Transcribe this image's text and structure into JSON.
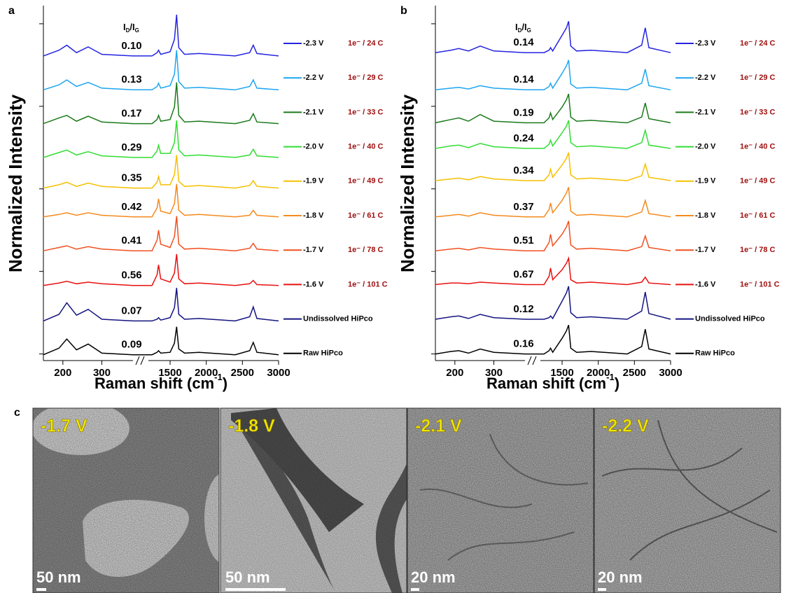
{
  "chart_data": [
    {
      "type": "line",
      "panel": "a",
      "ratio_header": [
        "I",
        "D",
        "/I",
        "G"
      ],
      "y_label": "Normalized Intensity",
      "x_label": [
        "Raman shift (cm",
        "-1",
        ")"
      ],
      "x": [
        150,
        190,
        210,
        235,
        265,
        300,
        380,
        1250,
        1320,
        1340,
        1370,
        1500,
        1560,
        1590,
        1620,
        1700,
        1900,
        2400,
        2600,
        2650,
        2700,
        3000
      ],
      "xlim": [
        150,
        3000
      ],
      "xbreak": [
        380,
        1200
      ],
      "xticks": [
        200,
        300,
        1500,
        2000,
        2500,
        3000
      ],
      "ylim": [
        -0.08,
        4.22
      ],
      "yticks": [
        0,
        1,
        2,
        3,
        4
      ],
      "series": [
        {
          "name": "-2.3 V",
          "charge": "1e⁻ / 24 C",
          "ratio": {
            "value": 0.1,
            "label": "0.10"
          },
          "color": "#2424e0",
          "values": [
            3.61,
            3.68,
            3.74,
            3.65,
            3.72,
            3.63,
            3.61,
            3.61,
            3.65,
            3.68,
            3.63,
            3.66,
            3.81,
            4.11,
            3.71,
            3.63,
            3.64,
            3.61,
            3.65,
            3.74,
            3.64,
            3.61
          ]
        },
        {
          "name": "-2.2 V",
          "charge": "1e⁻ / 29 C",
          "ratio": 0.13,
          "color": "#1ea6f0",
          "values": [
            3.2,
            3.26,
            3.32,
            3.24,
            3.29,
            3.22,
            3.2,
            3.2,
            3.24,
            3.28,
            3.22,
            3.25,
            3.39,
            3.68,
            3.3,
            3.22,
            3.23,
            3.2,
            3.24,
            3.32,
            3.22,
            3.2
          ]
        },
        {
          "name": "-2.1 V",
          "charge": "1e⁻ / 33 C",
          "ratio": 0.17,
          "color": "#1b7a1b",
          "values": [
            2.79,
            2.86,
            2.89,
            2.82,
            2.88,
            2.81,
            2.79,
            2.79,
            2.84,
            2.89,
            2.82,
            2.84,
            2.99,
            3.29,
            2.89,
            2.81,
            2.82,
            2.79,
            2.83,
            2.91,
            2.81,
            2.79
          ]
        },
        {
          "name": "-2.0 V",
          "charge": "1e⁻ / 40 C",
          "ratio": 0.29,
          "color": "#33dd33",
          "values": [
            2.38,
            2.44,
            2.47,
            2.41,
            2.45,
            2.4,
            2.38,
            2.38,
            2.46,
            2.53,
            2.43,
            2.43,
            2.56,
            2.83,
            2.47,
            2.4,
            2.41,
            2.38,
            2.41,
            2.48,
            2.4,
            2.38
          ]
        },
        {
          "name": "-1.9 V",
          "charge": "1e⁻ / 49 C",
          "ratio": 0.35,
          "color": "#f5c000",
          "values": [
            2.01,
            2.05,
            2.08,
            2.03,
            2.07,
            2.03,
            2.01,
            2.01,
            2.08,
            2.15,
            2.05,
            2.05,
            2.17,
            2.41,
            2.09,
            2.03,
            2.04,
            2.01,
            2.04,
            2.1,
            2.03,
            2.01
          ]
        },
        {
          "name": "-1.8 V",
          "charge": "1e⁻ / 61 C",
          "ratio": 0.42,
          "color": "#f58a1e",
          "values": [
            1.66,
            1.69,
            1.71,
            1.68,
            1.71,
            1.68,
            1.66,
            1.66,
            1.77,
            1.88,
            1.73,
            1.7,
            1.82,
            2.06,
            1.74,
            1.68,
            1.69,
            1.66,
            1.68,
            1.74,
            1.68,
            1.66
          ]
        },
        {
          "name": "-1.7 V",
          "charge": "1e⁻ / 78 C",
          "ratio": 0.41,
          "color": "#f05020",
          "values": [
            1.25,
            1.29,
            1.31,
            1.27,
            1.3,
            1.27,
            1.25,
            1.25,
            1.38,
            1.5,
            1.33,
            1.29,
            1.42,
            1.67,
            1.33,
            1.27,
            1.28,
            1.25,
            1.28,
            1.34,
            1.27,
            1.25
          ]
        },
        {
          "name": "-1.6 V",
          "charge": "1e⁻ / 101 C",
          "ratio": 0.56,
          "color": "#e81010",
          "values": [
            0.83,
            0.86,
            0.88,
            0.85,
            0.87,
            0.85,
            0.83,
            0.83,
            0.96,
            1.08,
            0.91,
            0.87,
            0.98,
            1.21,
            0.91,
            0.85,
            0.86,
            0.83,
            0.85,
            0.89,
            0.84,
            0.83
          ]
        },
        {
          "name": "Undissolved HiPco",
          "ratio": 0.07,
          "color": "#141480",
          "values": [
            0.4,
            0.48,
            0.62,
            0.47,
            0.54,
            0.42,
            0.4,
            0.4,
            0.42,
            0.44,
            0.41,
            0.44,
            0.56,
            0.8,
            0.48,
            0.42,
            0.43,
            0.4,
            0.45,
            0.57,
            0.43,
            0.4
          ]
        },
        {
          "name": "Raw HiPco",
          "ratio": 0.09,
          "color": "#000000",
          "values": [
            -0.01,
            0.07,
            0.18,
            0.05,
            0.12,
            0.01,
            -0.01,
            -0.01,
            0.02,
            0.04,
            0.01,
            0.02,
            0.13,
            0.33,
            0.06,
            0.01,
            0.02,
            -0.01,
            0.04,
            0.14,
            0.02,
            -0.01
          ]
        }
      ]
    },
    {
      "type": "line",
      "panel": "b",
      "ratio_header": [
        "I",
        "D",
        "/I",
        "G"
      ],
      "y_label": "Normalized Intensity",
      "x_label": [
        "Raman shift (cm",
        "-1",
        ")"
      ],
      "x": [
        150,
        190,
        210,
        235,
        265,
        300,
        380,
        1250,
        1320,
        1340,
        1370,
        1500,
        1560,
        1590,
        1620,
        1700,
        1900,
        2400,
        2600,
        2650,
        2700,
        3000
      ],
      "xlim": [
        150,
        3000
      ],
      "xbreak": [
        380,
        1200
      ],
      "xticks": [
        200,
        300,
        1500,
        2000,
        2500,
        3000
      ],
      "ylim": [
        -0.08,
        4.22
      ],
      "yticks": [
        0,
        1,
        2,
        3,
        4
      ],
      "series": [
        {
          "name": "-2.3 V",
          "charge": "1e⁻ / 24 C",
          "ratio": 0.14,
          "color": "#2424e0",
          "values": [
            3.65,
            3.68,
            3.7,
            3.67,
            3.73,
            3.67,
            3.65,
            3.65,
            3.68,
            3.71,
            3.67,
            3.86,
            3.95,
            4.03,
            3.73,
            3.67,
            3.68,
            3.65,
            3.74,
            3.95,
            3.71,
            3.65
          ]
        },
        {
          "name": "-2.2 V",
          "charge": "1e⁻ / 29 C",
          "ratio": 0.14,
          "color": "#1ea6f0",
          "values": [
            3.2,
            3.22,
            3.23,
            3.21,
            3.25,
            3.22,
            3.2,
            3.2,
            3.24,
            3.28,
            3.22,
            3.4,
            3.49,
            3.56,
            3.27,
            3.22,
            3.23,
            3.2,
            3.28,
            3.45,
            3.25,
            3.2
          ]
        },
        {
          "name": "-2.1 V",
          "charge": "1e⁻ / 33 C",
          "ratio": 0.19,
          "color": "#1b7a1b",
          "values": [
            2.8,
            2.84,
            2.86,
            2.82,
            2.9,
            2.82,
            2.8,
            2.8,
            2.86,
            2.92,
            2.84,
            2.99,
            3.08,
            3.15,
            2.87,
            2.82,
            2.83,
            2.8,
            2.87,
            3.04,
            2.85,
            2.8
          ]
        },
        {
          "name": "-2.0 V",
          "charge": "1e⁻ / 40 C",
          "ratio": 0.24,
          "color": "#33dd33",
          "values": [
            2.49,
            2.52,
            2.53,
            2.5,
            2.55,
            2.51,
            2.49,
            2.49,
            2.54,
            2.59,
            2.52,
            2.68,
            2.76,
            2.83,
            2.56,
            2.51,
            2.52,
            2.49,
            2.56,
            2.71,
            2.53,
            2.49
          ]
        },
        {
          "name": "-1.9 V",
          "charge": "1e⁻ / 49 C",
          "ratio": 0.34,
          "color": "#f5c000",
          "values": [
            2.1,
            2.12,
            2.13,
            2.11,
            2.15,
            2.12,
            2.1,
            2.1,
            2.17,
            2.24,
            2.14,
            2.29,
            2.37,
            2.44,
            2.17,
            2.12,
            2.13,
            2.1,
            2.16,
            2.3,
            2.14,
            2.1
          ]
        },
        {
          "name": "-1.8 V",
          "charge": "1e⁻ / 61 C",
          "ratio": 0.37,
          "color": "#f58a1e",
          "values": [
            1.66,
            1.68,
            1.69,
            1.67,
            1.71,
            1.68,
            1.66,
            1.66,
            1.75,
            1.83,
            1.71,
            1.86,
            1.95,
            2.02,
            1.73,
            1.68,
            1.69,
            1.66,
            1.72,
            1.86,
            1.7,
            1.66
          ]
        },
        {
          "name": "-1.7 V",
          "charge": "1e⁻ / 78 C",
          "ratio": 0.51,
          "color": "#f05020",
          "values": [
            1.25,
            1.27,
            1.28,
            1.26,
            1.29,
            1.27,
            1.25,
            1.25,
            1.35,
            1.45,
            1.31,
            1.45,
            1.54,
            1.61,
            1.32,
            1.27,
            1.28,
            1.25,
            1.3,
            1.43,
            1.29,
            1.25
          ]
        },
        {
          "name": "-1.6 V",
          "charge": "1e⁻ / 101 C",
          "ratio": 0.67,
          "color": "#e81010",
          "values": [
            0.84,
            0.86,
            0.86,
            0.85,
            0.87,
            0.86,
            0.84,
            0.84,
            0.94,
            1.04,
            0.9,
            1.02,
            1.1,
            1.16,
            0.9,
            0.86,
            0.87,
            0.84,
            0.87,
            0.93,
            0.86,
            0.84
          ]
        },
        {
          "name": "Undissolved HiPco",
          "ratio": 0.12,
          "color": "#141480",
          "values": [
            0.42,
            0.45,
            0.46,
            0.43,
            0.48,
            0.44,
            0.42,
            0.42,
            0.44,
            0.46,
            0.43,
            0.64,
            0.74,
            0.82,
            0.5,
            0.44,
            0.45,
            0.42,
            0.52,
            0.75,
            0.49,
            0.42
          ]
        },
        {
          "name": "Raw HiPco",
          "ratio": 0.16,
          "color": "#000000",
          "values": [
            0,
            0.03,
            0.04,
            0.01,
            0.06,
            0.02,
            0,
            0,
            0.04,
            0.07,
            0.02,
            0.19,
            0.28,
            0.35,
            0.07,
            0.02,
            0.03,
            0,
            0.09,
            0.3,
            0.06,
            0
          ]
        }
      ]
    }
  ],
  "tem": {
    "panel": "c",
    "images": [
      {
        "voltage": "-1.7 V",
        "scale": "50 nm"
      },
      {
        "voltage": "-1.8 V",
        "scale": "50 nm"
      },
      {
        "voltage": "-2.1 V",
        "scale": "20 nm"
      },
      {
        "voltage": "-2.2 V",
        "scale": "20 nm"
      }
    ]
  }
}
